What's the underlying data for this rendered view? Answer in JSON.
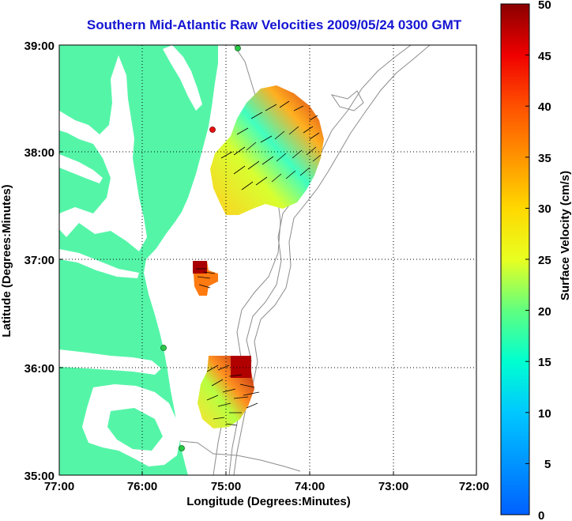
{
  "title": "Southern Mid-Atlantic Raw Velocities 2009/05/24 0300 GMT",
  "x_axis": {
    "label": "Longitude (Degrees:Minutes)",
    "ticks": [
      "77:00",
      "76:00",
      "75:00",
      "74:00",
      "73:00",
      "72:00"
    ]
  },
  "y_axis": {
    "label": "Latitude (Degrees:Minutes)",
    "ticks": [
      "39:00",
      "38:00",
      "37:00",
      "36:00",
      "35:00"
    ]
  },
  "colorbar": {
    "label": "Surface Velocity (cm/s)",
    "ticks": [
      "50",
      "45",
      "40",
      "35",
      "30",
      "25",
      "20",
      "15",
      "10",
      "5",
      "0"
    ],
    "min": 0,
    "max": 50
  },
  "colors": {
    "land": "#55f5a8",
    "title": "#1414d2",
    "station": "#2cc84a",
    "station_red": "#e81010",
    "isobath": "#8c8c8c"
  },
  "map_data": {
    "lon_range": [
      -77,
      -72
    ],
    "lat_range": [
      35,
      39
    ],
    "stations": [
      {
        "lon": -74.86,
        "lat": 39.02,
        "color": "green"
      },
      {
        "lon": -75.16,
        "lat": 38.23,
        "color": "red"
      },
      {
        "lon": -75.5,
        "lat": 36.19,
        "color": "green"
      },
      {
        "lon": -75.53,
        "lat": 35.25,
        "color": "green"
      }
    ],
    "velocity_regions": [
      {
        "name": "north",
        "lon_min": -75.2,
        "lon_max": -73.9,
        "lat_min": 37.5,
        "lat_max": 38.55
      },
      {
        "name": "mid",
        "lon_min": -75.4,
        "lon_max": -75.05,
        "lat_min": 36.8,
        "lat_max": 37.0
      },
      {
        "name": "south",
        "lon_min": -75.35,
        "lon_max": -74.75,
        "lat_min": 35.45,
        "lat_max": 36.1
      }
    ]
  }
}
